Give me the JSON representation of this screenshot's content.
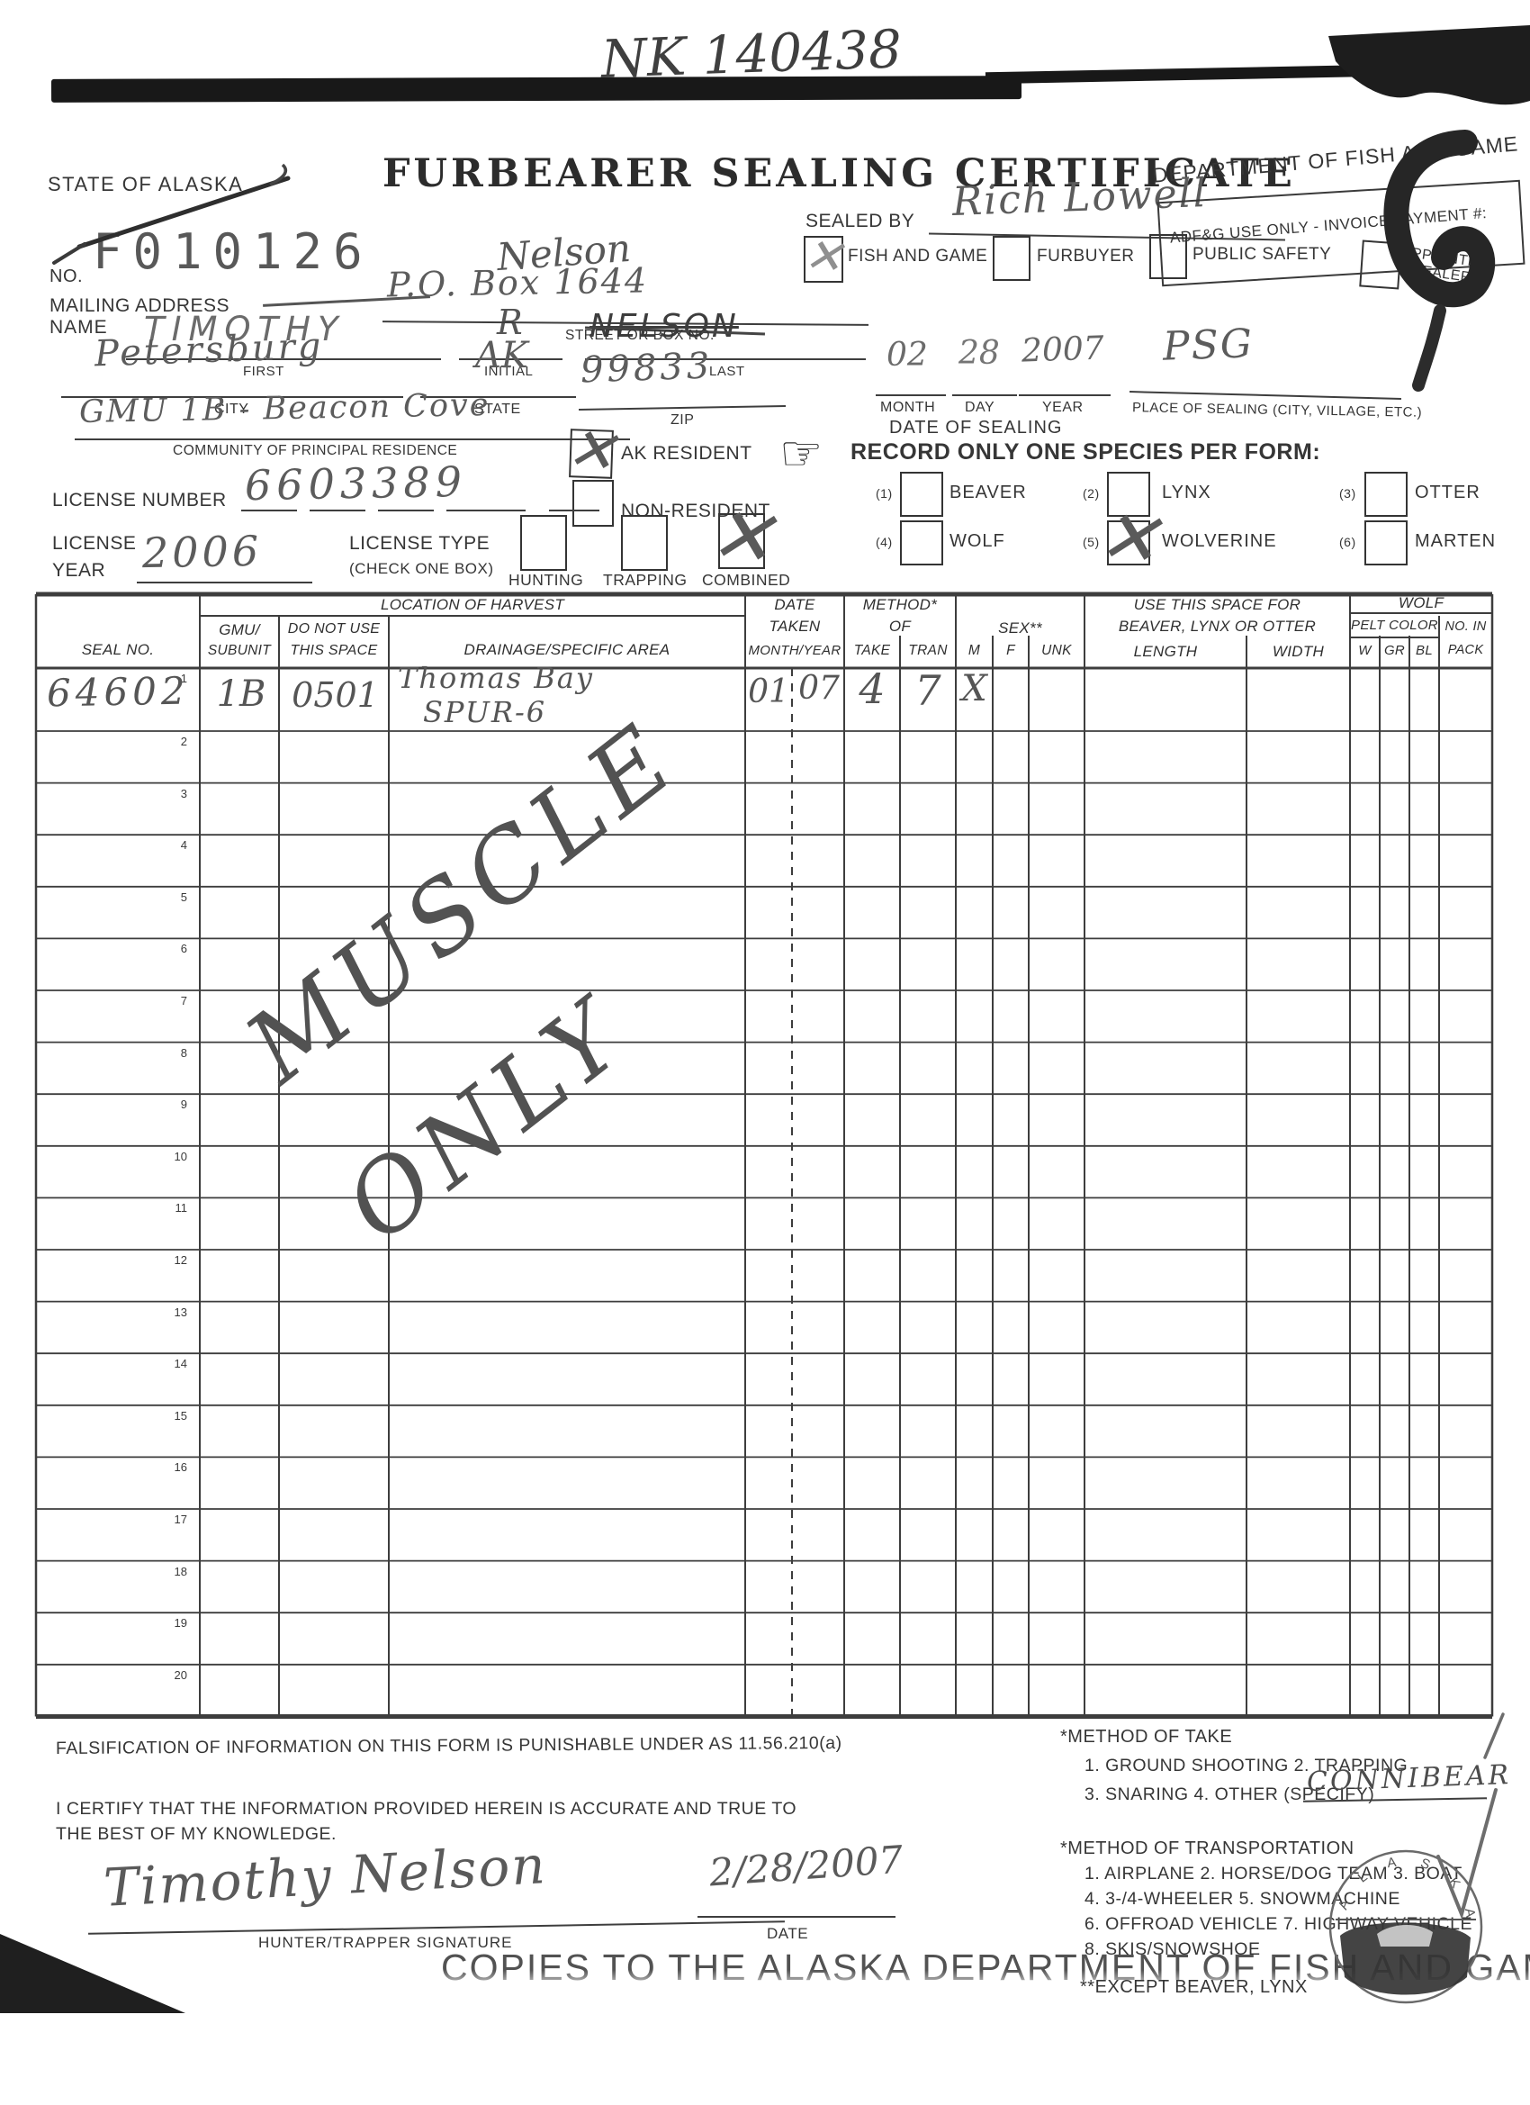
{
  "page": {
    "scrawl_top": "NK 140438",
    "state_label": "STATE OF ALASKA",
    "title": "FURBEARER SEALING CERTIFICATE",
    "department_line": "DEPARTMENT OF FISH AND GAME",
    "adfg_use_only": "ADF&G USE ONLY - INVOICE PAYMENT #:",
    "cert_no_label": "NO.",
    "cert_no": "F010126"
  },
  "name_section": {
    "name_label": "NAME",
    "first": "TIMOTHY",
    "first_label": "FIRST",
    "initial": "R",
    "initial_label": "INITIAL",
    "last_scribbled": "NELSON",
    "last_label": "LAST",
    "last_correction": "Nelson"
  },
  "sealed_by": {
    "label": "SEALED BY",
    "name": "Rich Lowell",
    "options": [
      {
        "label": "FISH AND GAME",
        "checked": true
      },
      {
        "label": "FURBUYER",
        "checked": false
      },
      {
        "label": "PUBLIC SAFETY",
        "checked": false
      },
      {
        "label_line1": "APPOINTED",
        "label_line2": "SEALER",
        "checked": false
      }
    ]
  },
  "address": {
    "label": "MAILING ADDRESS",
    "street": "P.O. Box 1644",
    "street_label": "STREET OR BOX NO.",
    "city": "Petersburg",
    "city_label": "CITY",
    "state": "AK",
    "state_label": "STATE",
    "zip": "99833",
    "zip_label": "ZIP",
    "community": "GMU 1B - Beacon Cove",
    "community_label": "COMMUNITY OF PRINCIPAL RESIDENCE"
  },
  "sealing": {
    "month": "02",
    "month_label": "MONTH",
    "day": "28",
    "day_label": "DAY",
    "year": "2007",
    "year_label": "YEAR",
    "date_caption": "DATE OF SEALING",
    "place": "PSG",
    "place_label": "PLACE OF SEALING (CITY, VILLAGE, ETC.)"
  },
  "residency": {
    "ak_resident_label": "AK RESIDENT",
    "ak_resident_checked": true,
    "non_resident_label": "NON-RESIDENT",
    "non_resident_checked": false
  },
  "species": {
    "hand_icon": "☞",
    "instruction": "RECORD ONLY ONE SPECIES PER FORM:",
    "options": [
      {
        "num": "(1)",
        "label": "BEAVER",
        "checked": false
      },
      {
        "num": "(2)",
        "label": "LYNX",
        "checked": false
      },
      {
        "num": "(3)",
        "label": "OTTER",
        "checked": false
      },
      {
        "num": "(4)",
        "label": "WOLF",
        "checked": false
      },
      {
        "num": "(5)",
        "label": "WOLVERINE",
        "checked": true
      },
      {
        "num": "(6)",
        "label": "MARTEN",
        "checked": false
      }
    ]
  },
  "license": {
    "number_label": "LICENSE NUMBER",
    "number": "6603389",
    "year_label_line1": "LICENSE",
    "year_label_line2": "YEAR",
    "year": "2006",
    "type_label": "LICENSE TYPE",
    "type_note": "(CHECK ONE BOX)",
    "types": [
      {
        "label": "HUNTING",
        "checked": false
      },
      {
        "label": "TRAPPING",
        "checked": false
      },
      {
        "label": "COMBINED",
        "checked": true
      }
    ]
  },
  "harvest_table": {
    "headers": {
      "seal_no": "SEAL NO.",
      "location_group": "LOCATION OF HARVEST",
      "gmu_line1": "GMU/",
      "gmu_line2": "SUBUNIT",
      "dnu_line1": "DO NOT USE",
      "dnu_line2": "THIS SPACE",
      "drainage": "DRAINAGE/SPECIFIC AREA",
      "date_line1": "DATE",
      "date_line2": "TAKEN",
      "date_line3": "MONTH/YEAR",
      "method_line1": "METHOD*",
      "method_line2": "OF",
      "take": "TAKE",
      "tran": "TRAN",
      "sex": "SEX**",
      "m": "M",
      "f": "F",
      "unk": "UNK",
      "blo_line1": "USE THIS SPACE FOR",
      "blo_line2": "BEAVER, LYNX OR OTTER",
      "length": "LENGTH",
      "width": "WIDTH",
      "wolf": "WOLF",
      "pelt_color": "PELT COLOR",
      "w": "W",
      "gr": "GR",
      "bl": "BL",
      "pack_line1": "NO. IN",
      "pack_line2": "PACK"
    },
    "rows": [
      {
        "no": "1",
        "seal_no": "64602",
        "gmu_subunit": "1B",
        "do_not_use": "0501",
        "drainage_line1": "Thomas Bay",
        "drainage_line2": "SPUR-6",
        "month": "01",
        "year": "07",
        "take": "4",
        "tran": "7",
        "sex_m": "X"
      },
      {
        "no": "2"
      },
      {
        "no": "3"
      },
      {
        "no": "4"
      },
      {
        "no": "5"
      },
      {
        "no": "6"
      },
      {
        "no": "7"
      },
      {
        "no": "8"
      },
      {
        "no": "9"
      },
      {
        "no": "10"
      },
      {
        "no": "11"
      },
      {
        "no": "12"
      },
      {
        "no": "13"
      },
      {
        "no": "14"
      },
      {
        "no": "15"
      },
      {
        "no": "16"
      },
      {
        "no": "17"
      },
      {
        "no": "18"
      },
      {
        "no": "19"
      },
      {
        "no": "20"
      }
    ]
  },
  "overlay": {
    "word1": "MUSCLE",
    "word2": "ONLY"
  },
  "footer": {
    "falsification": "FALSIFICATION OF INFORMATION ON THIS FORM IS PUNISHABLE UNDER AS 11.56.210(a)",
    "certify_line1": "I CERTIFY THAT THE INFORMATION PROVIDED HEREIN IS ACCURATE AND TRUE TO",
    "certify_line2": "THE BEST OF MY KNOWLEDGE.",
    "signature": "Timothy Nelson",
    "signature_label": "HUNTER/TRAPPER SIGNATURE",
    "date": "2/28/2007",
    "date_label": "DATE",
    "take_title": "*METHOD OF TAKE",
    "take_line1": "1. GROUND SHOOTING  2. TRAPPING",
    "take_line2": "3. SNARING  4. OTHER (SPECIFY)",
    "take_specify": "CONNIBEAR",
    "transport_title": "*METHOD OF TRANSPORTATION",
    "transport_line1": "1. AIRPLANE  2. HORSE/DOG TEAM  3. BOAT",
    "transport_line2": "4. 3-/4-WHEELER  5. SNOWMACHINE",
    "transport_line3": "6. OFFROAD VEHICLE  7. HIGHWAY VEHICLE",
    "transport_line4": "8. SKIS/SNOWSHOE",
    "except_note": "**EXCEPT BEAVER, LYNX",
    "copies_line": "COPIES TO THE ALASKA DEPARTMENT OF FISH AND GAME",
    "seal_text": "ALASKA"
  }
}
